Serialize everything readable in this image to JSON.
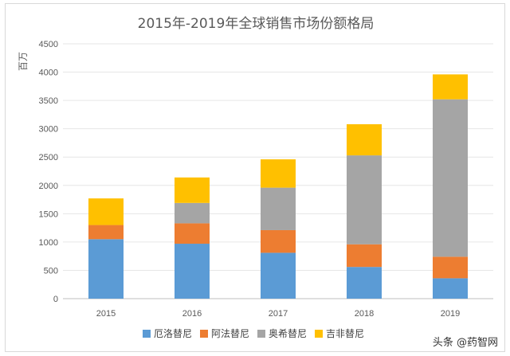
{
  "chart_data": {
    "type": "bar",
    "stacked": true,
    "title": "2015年-2019年全球销售市场份额格局",
    "ylabel": "百万",
    "xlabel": "",
    "categories": [
      "2015",
      "2016",
      "2017",
      "2018",
      "2019"
    ],
    "ylim": [
      0,
      4500
    ],
    "yticks": [
      "0",
      "500",
      "1000",
      "1500",
      "2000",
      "2500",
      "3000",
      "3500",
      "4000",
      "4500"
    ],
    "grid": true,
    "legend_position": "bottom",
    "series": [
      {
        "name": "厄洛替尼",
        "color": "#5b9bd5",
        "values": [
          1050,
          970,
          810,
          560,
          360
        ]
      },
      {
        "name": "阿法替尼",
        "color": "#ed7d31",
        "values": [
          250,
          360,
          400,
          400,
          380
        ]
      },
      {
        "name": "奥希替尼",
        "color": "#a5a5a5",
        "values": [
          0,
          360,
          750,
          1570,
          2780
        ]
      },
      {
        "name": "吉非替尼",
        "color": "#ffc000",
        "values": [
          470,
          450,
          500,
          550,
          440
        ]
      }
    ]
  },
  "watermark": "头条 @药智网"
}
